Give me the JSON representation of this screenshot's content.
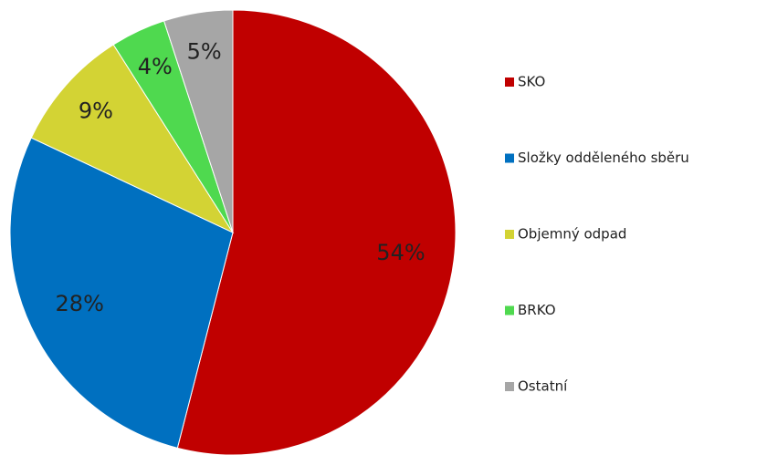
{
  "chart_data": {
    "type": "pie",
    "categories": [
      "SKO",
      "Složky odděleného sběru",
      "Objemný odpad",
      "BRKO",
      "Ostatní"
    ],
    "values": [
      54,
      28,
      9,
      4,
      5
    ],
    "value_labels": [
      "54%",
      "28%",
      "9%",
      "4%",
      "5%"
    ],
    "colors": [
      "#c00000",
      "#0070c0",
      "#d3d334",
      "#4fd94f",
      "#a6a6a6"
    ],
    "legend": "right"
  }
}
